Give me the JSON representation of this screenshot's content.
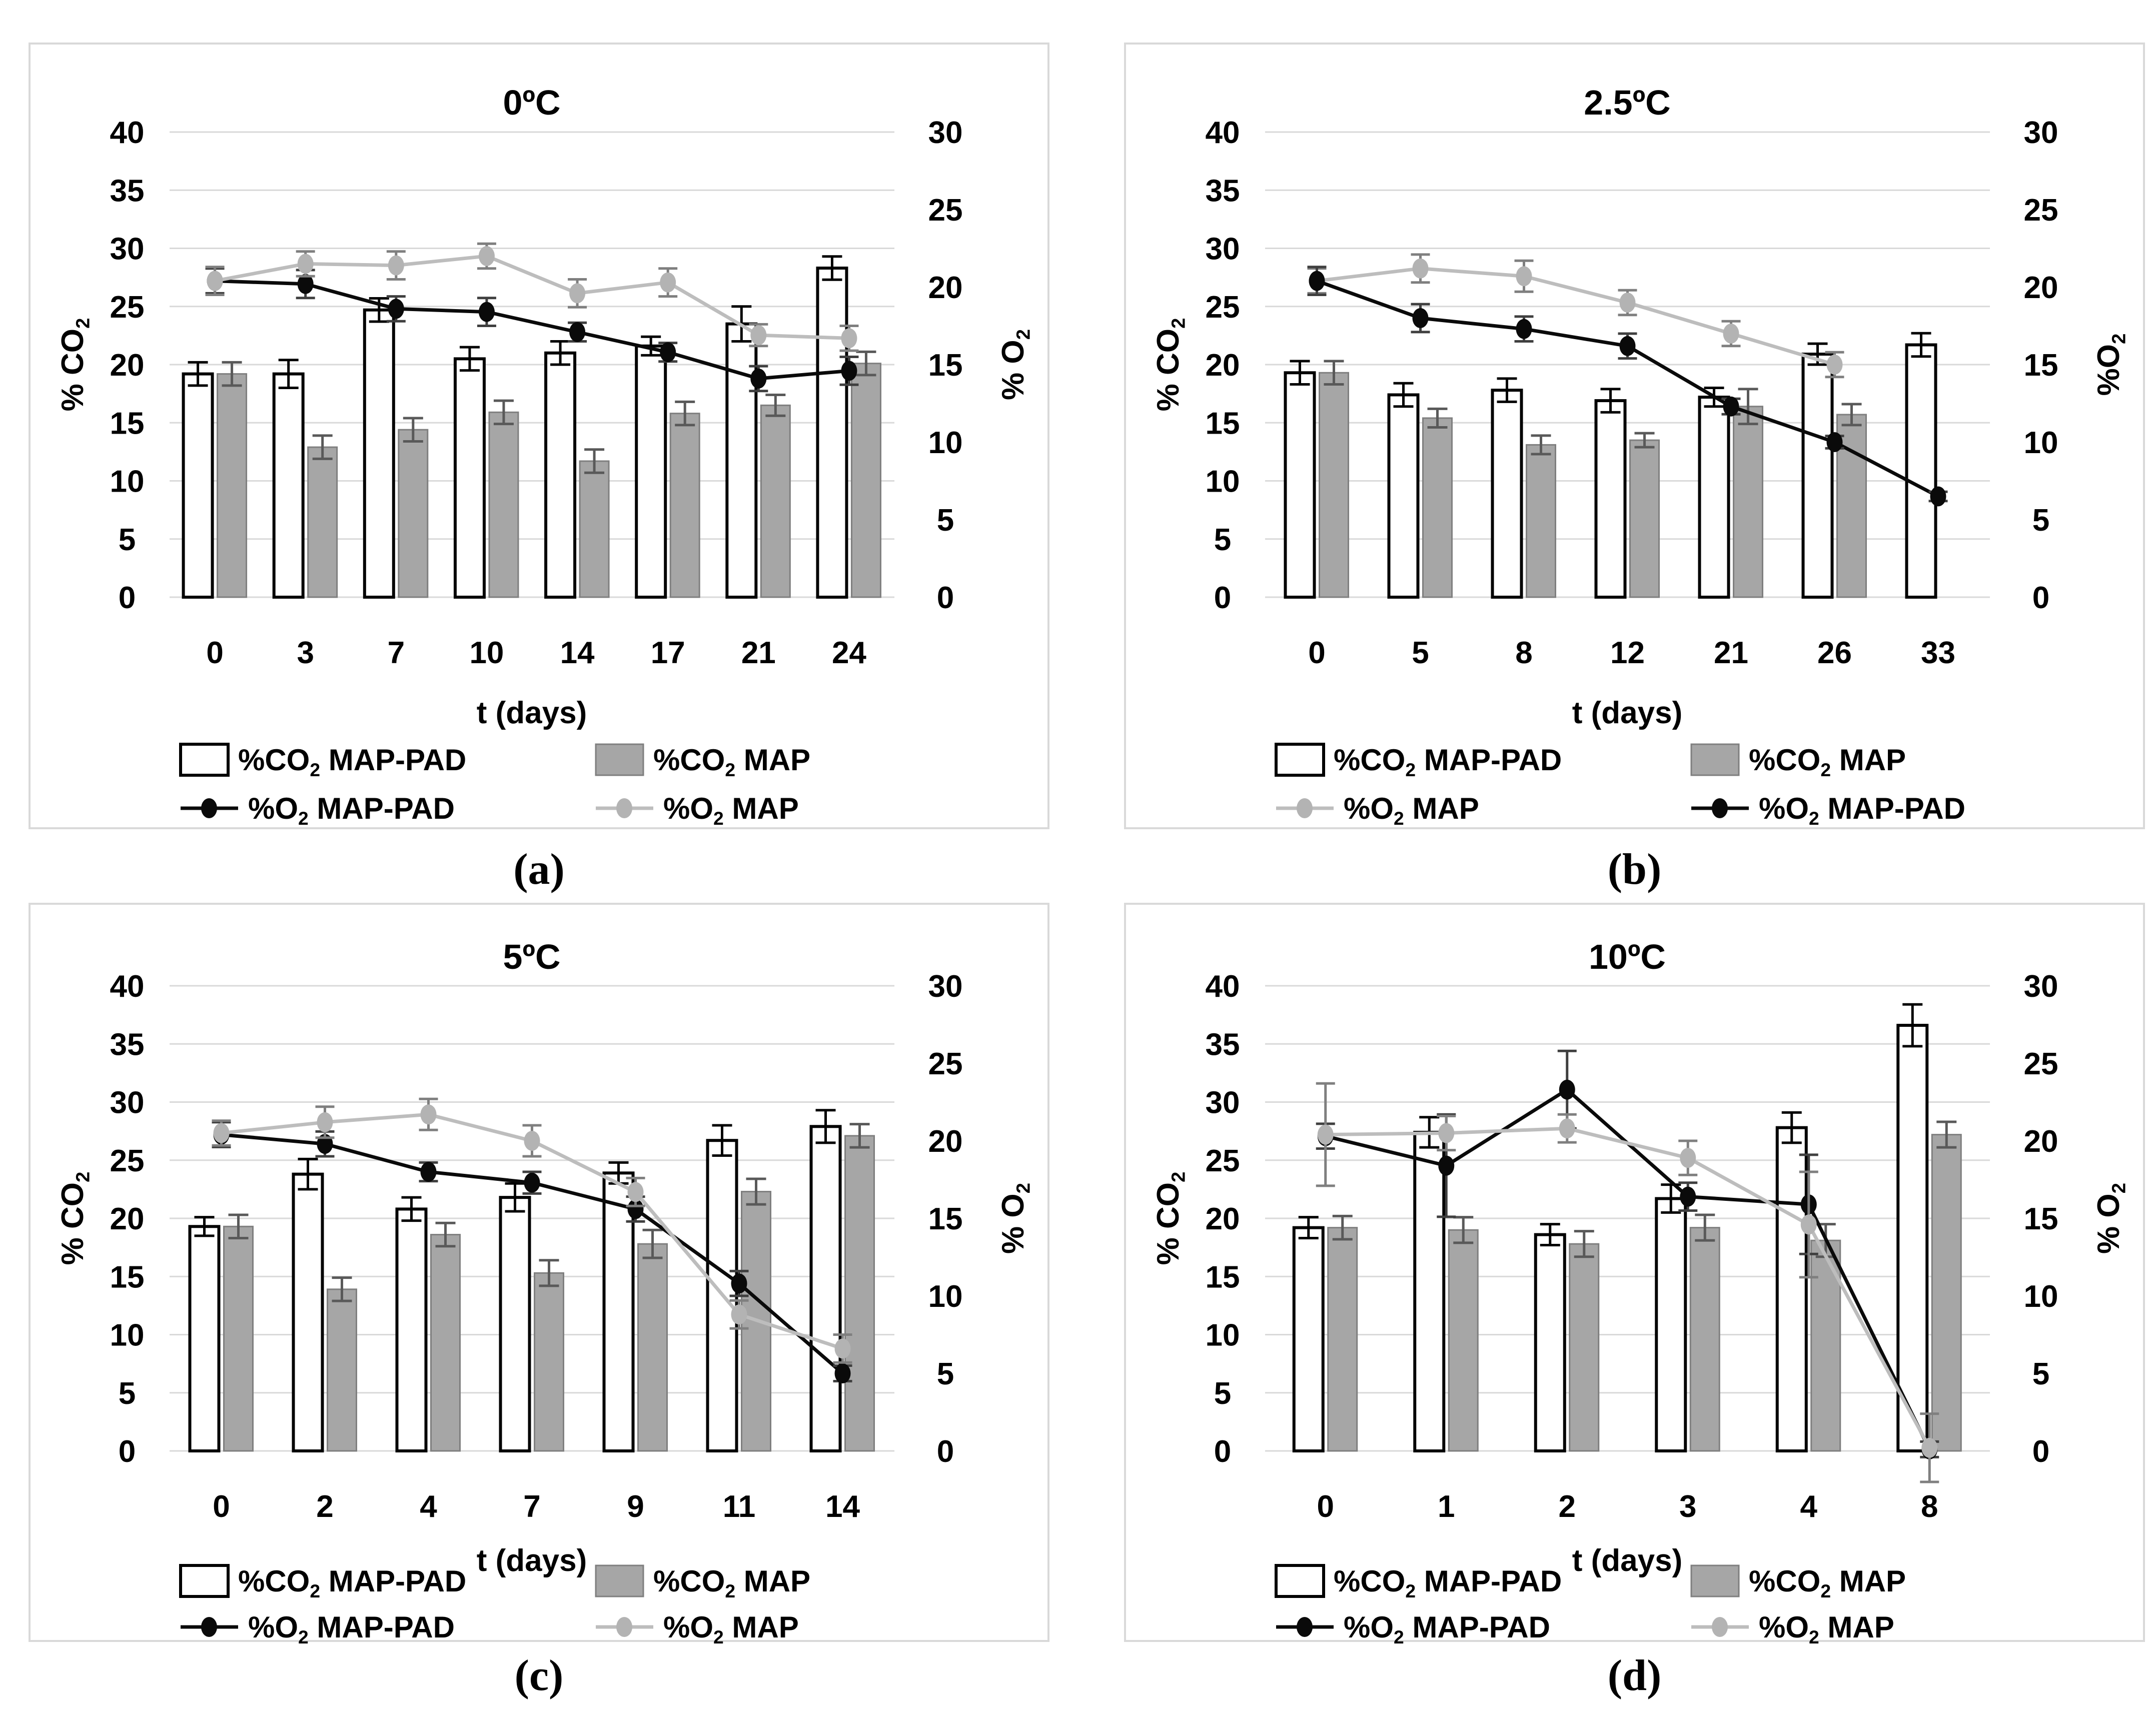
{
  "figure": {
    "description": "Gas composition (%CO2 bars, %O2 lines) versus storage time at four temperatures",
    "background": "#ffffff",
    "panel_border_color": "#d9d9d9",
    "gridline_color": "#d9d9d9"
  },
  "styles": {
    "white_bar": {
      "fill": "#ffffff",
      "stroke": "#000000"
    },
    "gray_bar": {
      "fill": "#a6a6a6",
      "stroke": "#7f7f7f",
      "error_color": "#595959"
    },
    "black_line": {
      "stroke": "#0a0a0a",
      "marker": "#0a0a0a",
      "error_color": "#3f3f3f"
    },
    "gray_line": {
      "stroke": "#bdbdbd",
      "marker": "#b3b3b3",
      "error_color": "#7f7f7f"
    }
  },
  "chart_data": [
    {
      "id": "a",
      "type": "bar",
      "subtype": "dual-axis bar + line with error bars",
      "title": "0ºC",
      "caption": "(a)",
      "xlabel": "t (days)",
      "ylabel_left": "% CO₂",
      "ylabel_right": "% O₂",
      "ylim_left": [
        0,
        40
      ],
      "ylim_right": [
        0,
        30
      ],
      "ytick_step": 5,
      "grid": true,
      "categories": [
        "0",
        "3",
        "7",
        "10",
        "14",
        "17",
        "21",
        "24"
      ],
      "series": [
        {
          "name": "%CO₂ MAP-PAD",
          "type": "bar",
          "style": "white_bar",
          "axis": "left",
          "values": [
            19.2,
            19.2,
            24.7,
            20.5,
            21.0,
            21.6,
            23.5,
            28.3
          ],
          "errors": [
            1.0,
            1.2,
            1.0,
            1.0,
            1.0,
            0.8,
            1.5,
            1.0
          ]
        },
        {
          "name": "%CO₂ MAP",
          "type": "bar",
          "style": "gray_bar",
          "axis": "left",
          "values": [
            19.2,
            12.9,
            14.4,
            15.9,
            11.7,
            15.8,
            16.5,
            20.1
          ],
          "errors": [
            1.0,
            1.0,
            1.0,
            1.0,
            1.0,
            1.0,
            0.9,
            1.0
          ]
        },
        {
          "name": "%O₂ MAP-PAD",
          "type": "line",
          "style": "black_line",
          "axis": "right",
          "values": [
            20.4,
            20.2,
            18.6,
            18.4,
            17.1,
            15.8,
            14.1,
            14.6
          ],
          "errors": [
            0.8,
            0.9,
            0.8,
            0.9,
            0.6,
            0.6,
            0.8,
            0.9
          ]
        },
        {
          "name": "%O₂ MAP",
          "type": "line",
          "style": "gray_line",
          "axis": "right",
          "values": [
            20.4,
            21.5,
            21.4,
            22.0,
            19.6,
            20.3,
            16.9,
            16.7
          ],
          "errors": [
            0.9,
            0.8,
            0.9,
            0.8,
            0.9,
            0.9,
            0.7,
            0.8
          ]
        }
      ]
    },
    {
      "id": "b",
      "type": "bar",
      "subtype": "dual-axis bar + line with error bars",
      "title": "2.5ºC",
      "caption": "(b)",
      "xlabel": "t (days)",
      "ylabel_left": "% CO₂",
      "ylabel_right": "%O₂",
      "ylim_left": [
        0,
        40
      ],
      "ylim_right": [
        0,
        30
      ],
      "ytick_step": 5,
      "grid": true,
      "categories": [
        "0",
        "5",
        "8",
        "12",
        "21",
        "26",
        "33"
      ],
      "series": [
        {
          "name": "%CO₂ MAP-PAD",
          "type": "bar",
          "style": "white_bar",
          "axis": "left",
          "values": [
            19.3,
            17.4,
            17.8,
            16.9,
            17.2,
            20.9,
            21.7
          ],
          "errors": [
            1.0,
            1.0,
            1.0,
            1.0,
            0.8,
            0.9,
            1.0
          ]
        },
        {
          "name": "%CO₂ MAP",
          "type": "bar",
          "style": "gray_bar",
          "axis": "left",
          "values": [
            19.3,
            15.4,
            13.1,
            13.5,
            16.4,
            15.7,
            null
          ],
          "errors": [
            1.0,
            0.8,
            0.8,
            0.6,
            1.5,
            0.9,
            null
          ]
        },
        {
          "name": "%O₂ MAP",
          "type": "line",
          "style": "gray_line",
          "axis": "right",
          "values": [
            20.4,
            21.2,
            20.7,
            19.0,
            17.0,
            15.0,
            null
          ],
          "errors": [
            0.8,
            0.9,
            1.0,
            0.8,
            0.8,
            0.8,
            null
          ]
        },
        {
          "name": "%O₂ MAP-PAD",
          "type": "line",
          "style": "black_line",
          "axis": "right",
          "values": [
            20.4,
            18.0,
            17.3,
            16.2,
            12.3,
            10.0,
            6.5
          ],
          "errors": [
            0.9,
            0.9,
            0.8,
            0.8,
            0.5,
            0.4,
            0.3
          ]
        }
      ]
    },
    {
      "id": "c",
      "type": "bar",
      "subtype": "dual-axis bar + line with error bars",
      "title": "5ºC",
      "caption": "(c)",
      "xlabel": "t (days)",
      "ylabel_left": "% CO₂",
      "ylabel_right": "% O₂",
      "ylim_left": [
        0,
        40
      ],
      "ylim_right": [
        0,
        30
      ],
      "ytick_step": 5,
      "grid": true,
      "categories": [
        "0",
        "2",
        "4",
        "7",
        "9",
        "11",
        "14"
      ],
      "series": [
        {
          "name": "%CO₂ MAP-PAD",
          "type": "bar",
          "style": "white_bar",
          "axis": "left",
          "values": [
            19.3,
            23.8,
            20.8,
            21.8,
            23.9,
            26.7,
            27.9
          ],
          "errors": [
            0.8,
            1.3,
            1.0,
            1.2,
            0.9,
            1.3,
            1.4
          ]
        },
        {
          "name": "%CO₂ MAP",
          "type": "bar",
          "style": "gray_bar",
          "axis": "left",
          "values": [
            19.3,
            13.9,
            18.6,
            15.3,
            17.8,
            22.3,
            27.1
          ],
          "errors": [
            1.0,
            1.0,
            1.0,
            1.1,
            1.2,
            1.1,
            1.0
          ]
        },
        {
          "name": "%O₂ MAP-PAD",
          "type": "line",
          "style": "black_line",
          "axis": "right",
          "values": [
            20.4,
            19.8,
            18.0,
            17.3,
            15.6,
            10.8,
            5.0
          ],
          "errors": [
            0.8,
            0.8,
            0.6,
            0.7,
            0.8,
            0.8,
            0.5
          ]
        },
        {
          "name": "%O₂ MAP",
          "type": "line",
          "style": "gray_line",
          "axis": "right",
          "values": [
            20.5,
            21.2,
            21.7,
            20.0,
            16.7,
            8.8,
            6.6
          ],
          "errors": [
            0.8,
            1.0,
            1.0,
            1.0,
            0.9,
            0.9,
            0.9
          ]
        }
      ]
    },
    {
      "id": "d",
      "type": "bar",
      "subtype": "dual-axis bar + line with error bars",
      "title": "10ºC",
      "caption": "(d)",
      "xlabel": "t (days)",
      "ylabel_left": "% CO₂",
      "ylabel_right": "% O₂",
      "ylim_left": [
        0,
        40
      ],
      "ylim_right": [
        0,
        30
      ],
      "ytick_step": 5,
      "grid": true,
      "categories": [
        "0",
        "1",
        "2",
        "3",
        "4",
        "8"
      ],
      "series": [
        {
          "name": "%CO₂ MAP-PAD",
          "type": "bar",
          "style": "white_bar",
          "axis": "left",
          "values": [
            19.2,
            27.4,
            18.6,
            21.7,
            27.8,
            36.6
          ],
          "errors": [
            0.9,
            1.3,
            0.9,
            1.2,
            1.3,
            1.8
          ]
        },
        {
          "name": "%CO₂ MAP",
          "type": "bar",
          "style": "gray_bar",
          "axis": "left",
          "values": [
            19.2,
            19.0,
            17.8,
            19.2,
            18.1,
            27.2
          ],
          "errors": [
            1.0,
            1.1,
            1.1,
            1.1,
            1.4,
            1.1
          ]
        },
        {
          "name": "%O₂ MAP-PAD",
          "type": "line",
          "style": "black_line",
          "axis": "right",
          "values": [
            20.3,
            18.4,
            23.3,
            16.4,
            15.9,
            0.1
          ],
          "errors": [
            0.8,
            3.3,
            2.5,
            0.9,
            3.2,
            0.5
          ]
        },
        {
          "name": "%O₂ MAP",
          "type": "line",
          "style": "gray_line",
          "axis": "right",
          "values": [
            20.4,
            20.5,
            20.8,
            18.9,
            14.6,
            0.2
          ],
          "errors": [
            3.3,
            1.1,
            0.9,
            1.1,
            3.4,
            2.2
          ]
        }
      ]
    }
  ]
}
